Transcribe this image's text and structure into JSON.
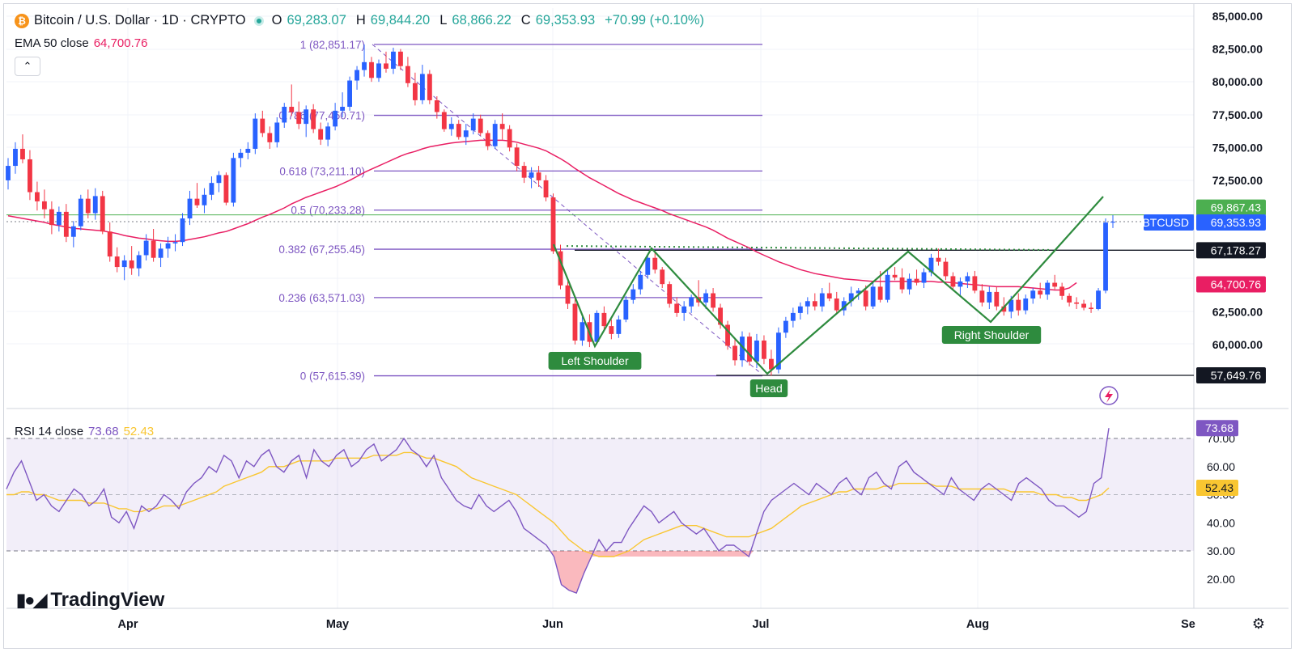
{
  "header": {
    "symbol_title": "Bitcoin / U.S. Dollar · 1D · CRYPTO",
    "open_label": "O",
    "open_value": "69,283.07",
    "high_label": "H",
    "high_value": "69,844.20",
    "low_label": "L",
    "low_value": "68,866.22",
    "close_label": "C",
    "close_value": "69,353.93",
    "change": "+70.99 (+0.10%)",
    "icon": "bitcoin-icon"
  },
  "ema": {
    "label": "EMA 50 close",
    "value": "64,700.76",
    "color": "#e91e63"
  },
  "rsi": {
    "label": "RSI 14 close",
    "value": "73.68",
    "ma_value": "52.43",
    "color": "#7e57c2",
    "ma_color": "#f9c631"
  },
  "price_axis": {
    "ticks": [
      "85,000.00",
      "82,500.00",
      "80,000.00",
      "77,500.00",
      "75,000.00",
      "72,500.00",
      "62,500.00",
      "60,000.00"
    ],
    "badges": {
      "green_level": "69,867.43",
      "symbol": "BTCUSD",
      "last_price": "69,353.93",
      "neckline": "67,178.27",
      "ema": "64,700.76",
      "low_level": "57,649.76"
    }
  },
  "rsi_axis": {
    "ticks": [
      "70.00",
      "60.00",
      "50.00",
      "40.00",
      "30.00",
      "20.00"
    ],
    "badge_rsi": "73.68",
    "badge_ma": "52.43"
  },
  "time_axis": {
    "ticks": [
      "Apr",
      "May",
      "Jun",
      "Jul",
      "Aug",
      "Se"
    ]
  },
  "brand": {
    "name": "TradingView",
    "icon": "tradingview-logo"
  },
  "colors": {
    "up": "#2962ff",
    "down": "#f23645",
    "fib": "#7e57c2",
    "pattern": "#2e8b3e",
    "ema": "#e91e63"
  },
  "chart_data": {
    "type": "candlestick",
    "title": "Bitcoin / U.S. Dollar · 1D · CRYPTO",
    "y_range": [
      56000,
      85000
    ],
    "rsi_range": [
      10,
      80
    ],
    "fibonacci": [
      {
        "label": "1 (82,851.17)",
        "value": 82851.17
      },
      {
        "label": "0.786 (77,450.71)",
        "value": 77450.71
      },
      {
        "label": "0.618 (73,211.10)",
        "value": 73211.1
      },
      {
        "label": "0.5 (70,233.28)",
        "value": 70233.28
      },
      {
        "label": "0.382 (67,255.45)",
        "value": 67255.45
      },
      {
        "label": "0.236 (63,571.03)",
        "value": 63571.03
      },
      {
        "label": "0 (57,615.39)",
        "value": 57615.39
      }
    ],
    "horizontal_levels": [
      {
        "value": 69867.43,
        "color": "#4caf50"
      },
      {
        "value": 67178.27,
        "color": "#131722"
      },
      {
        "value": 57649.76,
        "color": "#131722"
      }
    ],
    "pattern_labels": [
      "Left Shoulder",
      "Head",
      "Right Shoulder"
    ],
    "candles": [
      [
        72500,
        74200,
        71800,
        73600
      ],
      [
        73600,
        75400,
        73000,
        74900
      ],
      [
        74900,
        76000,
        73800,
        74100
      ],
      [
        74100,
        74800,
        71000,
        71600
      ],
      [
        71600,
        72400,
        70200,
        70900
      ],
      [
        70900,
        71800,
        69600,
        70300
      ],
      [
        70300,
        70900,
        68400,
        69100
      ],
      [
        69100,
        70500,
        68600,
        70100
      ],
      [
        70100,
        70700,
        67800,
        68200
      ],
      [
        68200,
        69400,
        67400,
        69000
      ],
      [
        69000,
        71400,
        68700,
        71100
      ],
      [
        71100,
        71800,
        69600,
        70000
      ],
      [
        70000,
        71900,
        69500,
        71300
      ],
      [
        71300,
        71700,
        68400,
        68600
      ],
      [
        68600,
        69300,
        66300,
        66700
      ],
      [
        66700,
        67400,
        65500,
        65900
      ],
      [
        65900,
        66800,
        64900,
        66400
      ],
      [
        66400,
        67500,
        65300,
        65800
      ],
      [
        65800,
        67100,
        65200,
        66800
      ],
      [
        66800,
        68400,
        66400,
        67900
      ],
      [
        67900,
        68800,
        66300,
        66600
      ],
      [
        66600,
        67700,
        65900,
        67300
      ],
      [
        67300,
        68200,
        66600,
        67700
      ],
      [
        67700,
        68400,
        67100,
        67800
      ],
      [
        67800,
        70000,
        67500,
        69600
      ],
      [
        69600,
        71700,
        69100,
        71100
      ],
      [
        71100,
        72300,
        70400,
        70600
      ],
      [
        70600,
        71900,
        70000,
        71400
      ],
      [
        71400,
        72800,
        71000,
        72300
      ],
      [
        72300,
        73200,
        71600,
        72900
      ],
      [
        72900,
        73100,
        70600,
        70800
      ],
      [
        70800,
        74600,
        70500,
        74200
      ],
      [
        74200,
        74900,
        73500,
        74600
      ],
      [
        74600,
        75400,
        74100,
        74900
      ],
      [
        74900,
        77600,
        74500,
        77200
      ],
      [
        77200,
        77800,
        75800,
        76100
      ],
      [
        76100,
        76600,
        74900,
        75400
      ],
      [
        75400,
        77300,
        75000,
        76900
      ],
      [
        76900,
        78400,
        76500,
        78100
      ],
      [
        78100,
        79800,
        77400,
        77700
      ],
      [
        77700,
        78500,
        76400,
        76800
      ],
      [
        76800,
        78200,
        75800,
        77900
      ],
      [
        77900,
        78300,
        76100,
        76400
      ],
      [
        76400,
        76900,
        75200,
        75600
      ],
      [
        75600,
        76900,
        75100,
        76600
      ],
      [
        76600,
        78400,
        76300,
        77800
      ],
      [
        77800,
        79200,
        77300,
        78100
      ],
      [
        78100,
        80400,
        77800,
        80100
      ],
      [
        80100,
        81200,
        79400,
        80900
      ],
      [
        80900,
        82851,
        80400,
        81500
      ],
      [
        81500,
        81900,
        80000,
        80300
      ],
      [
        80300,
        81700,
        80000,
        81400
      ],
      [
        81400,
        82300,
        80700,
        81000
      ],
      [
        81000,
        82600,
        80600,
        82300
      ],
      [
        82300,
        82500,
        80900,
        81200
      ],
      [
        81200,
        81900,
        79600,
        79900
      ],
      [
        79900,
        80700,
        78200,
        78600
      ],
      [
        78600,
        81300,
        78300,
        80600
      ],
      [
        80600,
        80900,
        78300,
        78600
      ],
      [
        78600,
        78900,
        77200,
        77700
      ],
      [
        77700,
        77900,
        76200,
        76400
      ],
      [
        76400,
        77300,
        75900,
        76800
      ],
      [
        76800,
        77100,
        75600,
        75800
      ],
      [
        75800,
        76800,
        75200,
        76300
      ],
      [
        76300,
        77600,
        76000,
        77200
      ],
      [
        77200,
        77500,
        75900,
        76100
      ],
      [
        76100,
        76300,
        74800,
        75100
      ],
      [
        75100,
        77100,
        74900,
        76800
      ],
      [
        76800,
        77600,
        75600,
        76400
      ],
      [
        76400,
        76700,
        74700,
        75000
      ],
      [
        75000,
        75300,
        73200,
        73600
      ],
      [
        73600,
        73900,
        72300,
        72700
      ],
      [
        72700,
        73500,
        71900,
        73100
      ],
      [
        73100,
        73600,
        72000,
        72500
      ],
      [
        72500,
        72900,
        70900,
        71200
      ],
      [
        71200,
        71500,
        66900,
        67100
      ],
      [
        67100,
        67600,
        64200,
        64500
      ],
      [
        64500,
        64800,
        62700,
        63100
      ],
      [
        63100,
        63500,
        60000,
        60300
      ],
      [
        60300,
        62100,
        59900,
        61700
      ],
      [
        61700,
        62300,
        59800,
        60200
      ],
      [
        60200,
        62600,
        60000,
        62400
      ],
      [
        62400,
        62900,
        61100,
        61400
      ],
      [
        61400,
        61900,
        60400,
        60800
      ],
      [
        60800,
        62200,
        60500,
        61900
      ],
      [
        61900,
        63700,
        61700,
        63400
      ],
      [
        63400,
        64600,
        63100,
        64200
      ],
      [
        64200,
        65600,
        63800,
        65300
      ],
      [
        65300,
        66900,
        65000,
        66600
      ],
      [
        66600,
        67100,
        65400,
        65700
      ],
      [
        65700,
        65900,
        64300,
        64600
      ],
      [
        64600,
        64800,
        62800,
        63100
      ],
      [
        63100,
        63600,
        62100,
        62400
      ],
      [
        62400,
        63300,
        61800,
        62900
      ],
      [
        62900,
        63800,
        62400,
        63600
      ],
      [
        63600,
        64900,
        62900,
        63200
      ],
      [
        63200,
        64200,
        62700,
        63900
      ],
      [
        63900,
        64300,
        62500,
        62800
      ],
      [
        62800,
        63100,
        61200,
        61500
      ],
      [
        61500,
        61800,
        59600,
        59900
      ],
      [
        59900,
        60500,
        58400,
        58800
      ],
      [
        58800,
        61000,
        58300,
        60600
      ],
      [
        60600,
        60900,
        58400,
        58700
      ],
      [
        58700,
        60800,
        58200,
        60300
      ],
      [
        60300,
        60700,
        58500,
        58900
      ],
      [
        58900,
        59600,
        57615,
        58100
      ],
      [
        58100,
        61300,
        57800,
        60900
      ],
      [
        60900,
        62100,
        60500,
        61800
      ],
      [
        61800,
        62800,
        61300,
        62400
      ],
      [
        62400,
        63200,
        61900,
        62900
      ],
      [
        62900,
        63600,
        62300,
        63300
      ],
      [
        63300,
        63900,
        62600,
        62900
      ],
      [
        62900,
        64300,
        62500,
        63900
      ],
      [
        63900,
        64700,
        63300,
        63500
      ],
      [
        63500,
        64000,
        62300,
        62600
      ],
      [
        62600,
        63600,
        62200,
        63300
      ],
      [
        63300,
        64400,
        62900,
        63900
      ],
      [
        63900,
        64300,
        63400,
        64100
      ],
      [
        64100,
        64500,
        62600,
        62900
      ],
      [
        62900,
        64700,
        62700,
        64400
      ],
      [
        64400,
        65600,
        63200,
        63400
      ],
      [
        63400,
        65700,
        63200,
        65300
      ],
      [
        65300,
        65900,
        64900,
        65100
      ],
      [
        65100,
        65800,
        63900,
        64200
      ],
      [
        64200,
        65400,
        63800,
        65000
      ],
      [
        65000,
        65700,
        64500,
        64700
      ],
      [
        64700,
        65800,
        64300,
        65500
      ],
      [
        65500,
        66900,
        65200,
        66600
      ],
      [
        66600,
        67300,
        66000,
        66300
      ],
      [
        66300,
        66600,
        64900,
        65200
      ],
      [
        65200,
        65500,
        64100,
        64400
      ],
      [
        64400,
        65100,
        63700,
        64800
      ],
      [
        64800,
        65500,
        64300,
        65200
      ],
      [
        65200,
        65600,
        63900,
        64100
      ],
      [
        64100,
        64600,
        62900,
        63200
      ],
      [
        63200,
        64400,
        62700,
        64000
      ],
      [
        64000,
        64400,
        62600,
        62900
      ],
      [
        62900,
        63600,
        62200,
        62500
      ],
      [
        62500,
        63700,
        62000,
        63400
      ],
      [
        63400,
        63900,
        62200,
        62600
      ],
      [
        62600,
        63800,
        62300,
        63500
      ],
      [
        63500,
        64300,
        63100,
        64100
      ],
      [
        64100,
        64700,
        63500,
        63800
      ],
      [
        63800,
        64900,
        63400,
        64700
      ],
      [
        64700,
        65300,
        64200,
        64400
      ],
      [
        64400,
        64700,
        63400,
        63700
      ],
      [
        63700,
        63900,
        62900,
        63200
      ],
      [
        63200,
        63600,
        62700,
        63100
      ],
      [
        63100,
        63400,
        62600,
        62800
      ],
      [
        62800,
        63200,
        62400,
        62700
      ],
      [
        62700,
        64300,
        62600,
        64100
      ],
      [
        64100,
        69600,
        63900,
        69283
      ],
      [
        69283,
        69844,
        68866,
        69353
      ]
    ],
    "rsi_values": [
      52,
      58,
      62,
      55,
      48,
      50,
      46,
      44,
      48,
      52,
      50,
      46,
      48,
      52,
      42,
      40,
      44,
      38,
      46,
      44,
      46,
      50,
      48,
      45,
      51,
      54,
      56,
      60,
      58,
      64,
      62,
      56,
      62,
      60,
      64,
      66,
      60,
      58,
      62,
      64,
      56,
      66,
      62,
      60,
      64,
      66,
      60,
      62,
      66,
      68,
      62,
      64,
      66,
      70,
      66,
      64,
      60,
      64,
      56,
      52,
      48,
      46,
      45,
      50,
      46,
      44,
      46,
      48,
      44,
      38,
      36,
      34,
      32,
      28,
      18,
      16,
      15,
      22,
      28,
      34,
      30,
      33,
      33,
      38,
      42,
      46,
      44,
      40,
      42,
      44,
      40,
      38,
      36,
      38,
      34,
      30,
      32,
      32,
      30,
      28,
      36,
      44,
      48,
      50,
      52,
      54,
      52,
      50,
      54,
      52,
      50,
      54,
      56,
      52,
      50,
      56,
      58,
      54,
      52,
      60,
      62,
      58,
      56,
      54,
      52,
      50,
      56,
      52,
      50,
      48,
      52,
      54,
      52,
      50,
      48,
      54,
      56,
      54,
      52,
      48,
      46,
      46,
      44,
      42,
      44,
      54,
      56,
      73.68
    ],
    "rsi_ma_values": [
      50,
      50,
      51,
      51,
      50,
      50,
      49,
      48,
      48,
      48,
      48,
      47,
      47,
      47,
      46,
      45,
      45,
      44,
      44,
      45,
      45,
      46,
      46,
      46,
      47,
      48,
      49,
      50,
      51,
      53,
      54,
      55,
      56,
      57,
      58,
      60,
      60,
      60,
      61,
      62,
      62,
      62,
      62,
      62,
      63,
      63,
      63,
      63,
      63,
      64,
      64,
      64,
      64,
      65,
      65,
      64,
      63,
      63,
      62,
      61,
      60,
      58,
      56,
      55,
      54,
      53,
      52,
      51,
      50,
      48,
      46,
      44,
      42,
      40,
      37,
      34,
      32,
      30,
      29,
      28,
      28,
      28,
      29,
      30,
      32,
      34,
      35,
      36,
      37,
      38,
      39,
      39,
      39,
      38,
      37,
      36,
      35,
      35,
      35,
      35,
      36,
      37,
      38,
      40,
      42,
      44,
      46,
      47,
      48,
      49,
      50,
      51,
      51,
      52,
      52,
      52,
      52,
      53,
      53,
      54,
      54,
      54,
      54,
      54,
      53,
      53,
      53,
      52,
      52,
      52,
      52,
      52,
      52,
      52,
      51,
      51,
      51,
      51,
      50,
      50,
      50,
      49,
      49,
      48,
      48,
      49,
      50,
      52.43
    ],
    "ema_values": [
      69800,
      69700,
      69600,
      69500,
      69400,
      69300,
      69150,
      69050,
      68950,
      68850,
      68800,
      68750,
      68700,
      68650,
      68550,
      68450,
      68300,
      68200,
      68100,
      68050,
      67950,
      67900,
      67850,
      67850,
      67900,
      68000,
      68100,
      68200,
      68350,
      68500,
      68600,
      68800,
      69000,
      69200,
      69450,
      69700,
      69900,
      70150,
      70400,
      70700,
      70950,
      71200,
      71400,
      71600,
      71800,
      72000,
      72250,
      72500,
      72800,
      73100,
      73350,
      73600,
      73850,
      74100,
      74350,
      74550,
      74700,
      74900,
      75050,
      75150,
      75250,
      75350,
      75400,
      75450,
      75500,
      75550,
      75550,
      75550,
      75550,
      75500,
      75400,
      75250,
      75100,
      74950,
      74750,
      74450,
      74150,
      73800,
      73400,
      73050,
      72700,
      72400,
      72100,
      71800,
      71500,
      71250,
      71000,
      70800,
      70600,
      70400,
      70200,
      69950,
      69750,
      69550,
      69350,
      69150,
      68950,
      68700,
      68400,
      68100,
      67850,
      67600,
      67350,
      67050,
      66800,
      66550,
      66300,
      66100,
      65900,
      65700,
      65550,
      65400,
      65300,
      65200,
      65100,
      65000,
      64950,
      64900,
      64850,
      64800,
      64800,
      64800,
      64800,
      64800,
      64800,
      64800,
      64800,
      64800,
      64750,
      64750,
      64700,
      64650,
      64600,
      64550,
      64500,
      64450,
      64400,
      64400,
      64400,
      64400,
      64350,
      64300,
      64250,
      64200,
      64150,
      64150,
      64300,
      64700.76
    ]
  }
}
